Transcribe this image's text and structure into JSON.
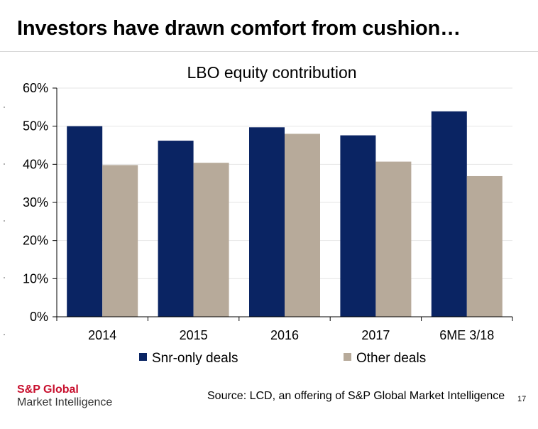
{
  "header": {
    "title": "Investors have drawn comfort from cushion…"
  },
  "chart_data": {
    "type": "bar",
    "title": "LBO equity contribution",
    "categories": [
      "2014",
      "2015",
      "2016",
      "2017",
      "6ME 3/18"
    ],
    "series": [
      {
        "name": "Snr-only deals",
        "values": [
          50.0,
          46.2,
          49.7,
          47.6,
          53.9
        ],
        "color": "#0a2463"
      },
      {
        "name": "Other deals",
        "values": [
          39.8,
          40.4,
          48.0,
          40.7,
          36.9
        ],
        "color": "#b7aa9a"
      }
    ],
    "ylim": [
      0,
      60
    ],
    "yticks": [
      0,
      10,
      20,
      30,
      40,
      50,
      60
    ],
    "ytick_labels": [
      "0%",
      "10%",
      "20%",
      "30%",
      "40%",
      "50%",
      "60%"
    ],
    "xlabel": "",
    "ylabel": "",
    "legend_position": "bottom",
    "grid": true
  },
  "footer": {
    "brand_name": "S&P Global",
    "brand_sub": "Market Intelligence",
    "source": "Source: LCD, an offering of S&P Global Market Intelligence",
    "page_number": "17"
  }
}
